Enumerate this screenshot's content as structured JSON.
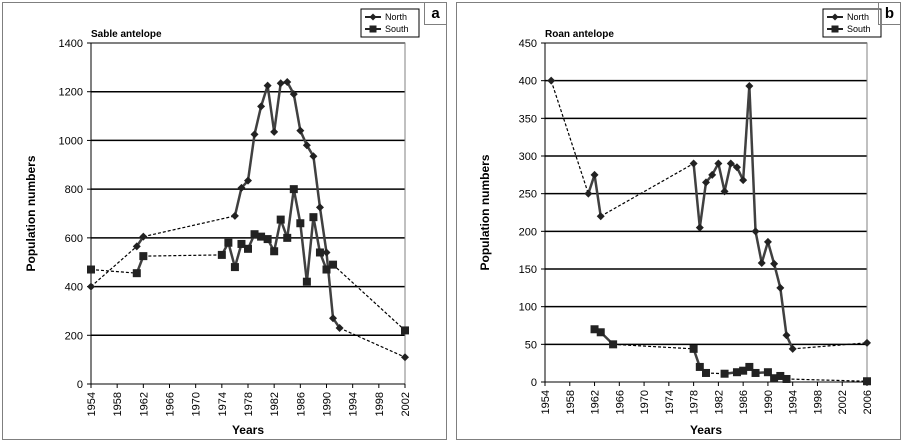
{
  "chart_data": [
    {
      "panel": "a",
      "type": "line",
      "title": "Sable antelope",
      "xlabel": "Years",
      "ylabel": "Population numbers",
      "xlim": [
        1954,
        2002
      ],
      "ylim": [
        0,
        1400
      ],
      "xticks": [
        1954,
        1958,
        1962,
        1966,
        1970,
        1974,
        1978,
        1982,
        1986,
        1990,
        1994,
        1998,
        2002
      ],
      "yticks": [
        0,
        200,
        400,
        600,
        800,
        1000,
        1200,
        1400
      ],
      "grid": "horizontal",
      "legend": "top-right",
      "series": [
        {
          "name": "North",
          "marker": "diamond",
          "points": [
            [
              1954,
              400
            ],
            [
              1961,
              565
            ],
            [
              1962,
              605
            ],
            [
              1976,
              690
            ],
            [
              1977,
              805
            ],
            [
              1978,
              835
            ],
            [
              1979,
              1025
            ],
            [
              1980,
              1140
            ],
            [
              1981,
              1225
            ],
            [
              1982,
              1035
            ],
            [
              1983,
              1235
            ],
            [
              1984,
              1240
            ],
            [
              1985,
              1190
            ],
            [
              1986,
              1040
            ],
            [
              1987,
              980
            ],
            [
              1988,
              935
            ],
            [
              1989,
              725
            ],
            [
              1990,
              540
            ],
            [
              1991,
              270
            ],
            [
              1992,
              230
            ],
            [
              2002,
              110
            ]
          ]
        },
        {
          "name": "South",
          "marker": "square",
          "points": [
            [
              1954,
              470
            ],
            [
              1961,
              455
            ],
            [
              1962,
              525
            ],
            [
              1974,
              530
            ],
            [
              1975,
              580
            ],
            [
              1976,
              480
            ],
            [
              1977,
              575
            ],
            [
              1978,
              555
            ],
            [
              1979,
              615
            ],
            [
              1980,
              605
            ],
            [
              1981,
              595
            ],
            [
              1982,
              545
            ],
            [
              1983,
              675
            ],
            [
              1984,
              600
            ],
            [
              1985,
              800
            ],
            [
              1986,
              660
            ],
            [
              1987,
              420
            ],
            [
              1988,
              685
            ],
            [
              1989,
              540
            ],
            [
              1990,
              470
            ],
            [
              1991,
              490
            ],
            [
              2002,
              220
            ]
          ]
        }
      ]
    },
    {
      "panel": "b",
      "type": "line",
      "title": "Roan antelope",
      "xlabel": "Years",
      "ylabel": "Population numbers",
      "xlim": [
        1954,
        2006
      ],
      "ylim": [
        0,
        450
      ],
      "xticks": [
        1954,
        1958,
        1962,
        1966,
        1970,
        1974,
        1978,
        1982,
        1986,
        1990,
        1994,
        1998,
        2002,
        2006
      ],
      "yticks": [
        0,
        50,
        100,
        150,
        200,
        250,
        300,
        350,
        400,
        450
      ],
      "grid": "horizontal",
      "legend": "top-right",
      "series": [
        {
          "name": "North",
          "marker": "diamond",
          "points": [
            [
              1955,
              400
            ],
            [
              1961,
              250
            ],
            [
              1962,
              275
            ],
            [
              1963,
              220
            ],
            [
              1978,
              290
            ],
            [
              1979,
              205
            ],
            [
              1980,
              265
            ],
            [
              1981,
              275
            ],
            [
              1982,
              290
            ],
            [
              1983,
              253
            ],
            [
              1984,
              290
            ],
            [
              1985,
              285
            ],
            [
              1986,
              268
            ],
            [
              1987,
              393
            ],
            [
              1988,
              200
            ],
            [
              1989,
              158
            ],
            [
              1990,
              186
            ],
            [
              1991,
              157
            ],
            [
              1992,
              125
            ],
            [
              1993,
              62
            ],
            [
              1994,
              44
            ],
            [
              2006,
              52
            ]
          ]
        },
        {
          "name": "South",
          "marker": "square",
          "points": [
            [
              1962,
              70
            ],
            [
              1963,
              66
            ],
            [
              1965,
              50
            ],
            [
              1978,
              44
            ],
            [
              1979,
              20
            ],
            [
              1980,
              12
            ],
            [
              1983,
              11
            ],
            [
              1985,
              13
            ],
            [
              1986,
              15
            ],
            [
              1987,
              20
            ],
            [
              1988,
              12
            ],
            [
              1990,
              13
            ],
            [
              1991,
              5
            ],
            [
              1992,
              8
            ],
            [
              1993,
              4
            ],
            [
              2006,
              1
            ]
          ]
        }
      ]
    }
  ],
  "panels": [
    {
      "letter": "a"
    },
    {
      "letter": "b"
    }
  ]
}
